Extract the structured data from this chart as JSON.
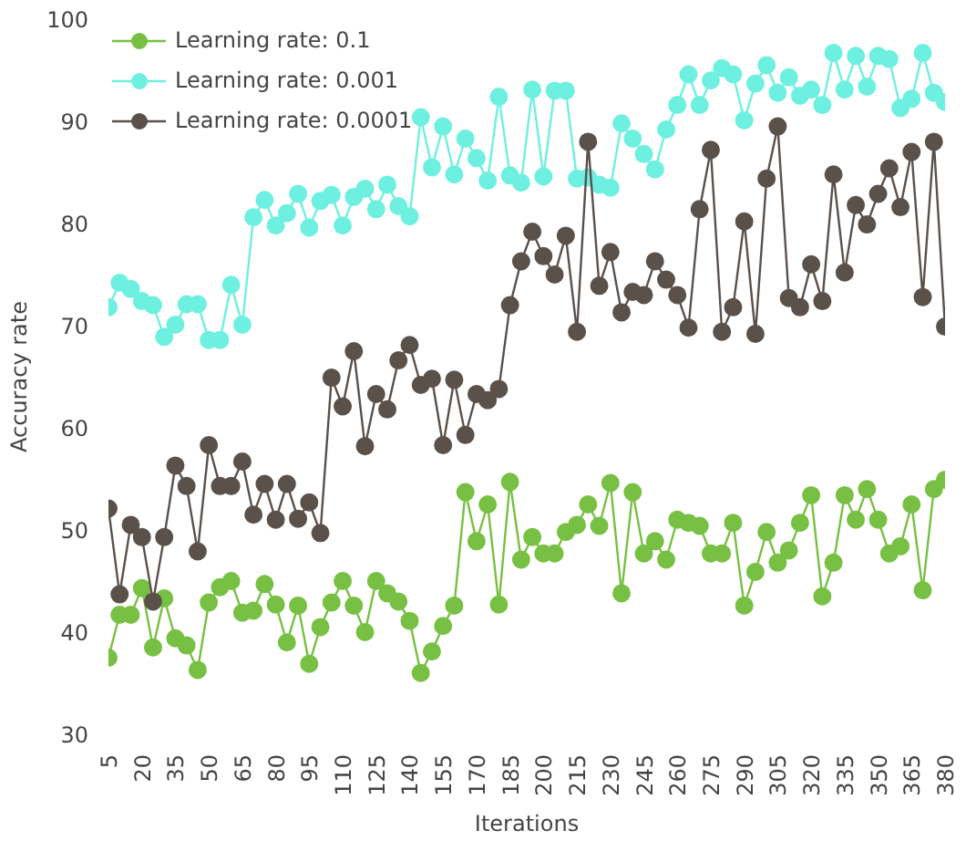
{
  "chart_data": {
    "type": "line",
    "xlabel": "Iterations",
    "ylabel": "Accuracy rate",
    "x": [
      5,
      10,
      15,
      20,
      25,
      30,
      35,
      40,
      45,
      50,
      55,
      60,
      65,
      70,
      75,
      80,
      85,
      90,
      95,
      100,
      105,
      110,
      115,
      120,
      125,
      130,
      135,
      140,
      145,
      150,
      155,
      160,
      165,
      170,
      175,
      180,
      185,
      190,
      195,
      200,
      205,
      210,
      215,
      220,
      225,
      230,
      235,
      240,
      245,
      250,
      255,
      260,
      265,
      270,
      275,
      280,
      285,
      290,
      295,
      300,
      305,
      310,
      315,
      320,
      325,
      330,
      335,
      340,
      345,
      350,
      355,
      360,
      365,
      370,
      375,
      380
    ],
    "series": [
      {
        "name": "Learning rate: 0.1",
        "color": "#77c043",
        "values": [
          37.5,
          41.7,
          41.7,
          44.3,
          38.5,
          43.3,
          39.4,
          38.7,
          36.3,
          42.9,
          44.4,
          45,
          41.9,
          42.1,
          44.7,
          42.7,
          39,
          42.6,
          36.9,
          40.5,
          42.9,
          45,
          42.6,
          40,
          45,
          43.8,
          43,
          41.1,
          36,
          38.1,
          40.6,
          42.6,
          53.7,
          48.9,
          52.5,
          42.7,
          54.7,
          47.1,
          49.3,
          47.7,
          47.7,
          49.8,
          50.5,
          52.5,
          50.4,
          54.6,
          43.8,
          53.7,
          47.7,
          48.9,
          47.1,
          51,
          50.7,
          50.4,
          47.7,
          47.7,
          50.7,
          42.6,
          45.9,
          49.8,
          46.8,
          48,
          50.7,
          53.4,
          43.5,
          46.8,
          53.4,
          51,
          54,
          51,
          47.7,
          48.4,
          52.5,
          44.1,
          54,
          54.9
        ]
      },
      {
        "name": "Learning rate: 0.001",
        "color": "#6ef0e0",
        "values": [
          71.8,
          74.2,
          73.6,
          72.4,
          72,
          68.9,
          70.1,
          72.1,
          72.1,
          68.6,
          68.6,
          74,
          70.1,
          80.6,
          82.3,
          79.8,
          81,
          82.9,
          79.6,
          82.2,
          82.8,
          79.8,
          82.6,
          83.4,
          81.4,
          83.8,
          81.7,
          80.7,
          90.4,
          85.5,
          89.5,
          84.8,
          88.3,
          86.4,
          84.2,
          92.4,
          84.7,
          84,
          93.1,
          84.6,
          93,
          93,
          84.4,
          84.5,
          83.8,
          83.5,
          89.8,
          88.3,
          86.8,
          85.3,
          89.2,
          91.6,
          94.6,
          91.6,
          94,
          95.2,
          94.6,
          90.1,
          93.7,
          95.5,
          92.8,
          94.3,
          92.5,
          93.1,
          91.6,
          96.7,
          93.1,
          96.4,
          93.4,
          96.4,
          96.1,
          91.3,
          92.2,
          96.7,
          92.8,
          91.9
        ]
      },
      {
        "name": "Learning rate: 0.0001",
        "color": "#5b514b",
        "values": [
          52.1,
          43.7,
          50.5,
          49.3,
          43,
          49.3,
          56.3,
          54.3,
          47.9,
          58.3,
          54.3,
          54.3,
          56.7,
          51.5,
          54.5,
          51,
          54.5,
          51.1,
          52.7,
          49.7,
          64.9,
          62.1,
          67.5,
          58.2,
          63.3,
          61.8,
          66.6,
          68.1,
          64.2,
          64.8,
          58.3,
          64.7,
          59.3,
          63.3,
          62.7,
          63.8,
          72,
          76.3,
          79.2,
          76.8,
          75,
          78.8,
          69.4,
          88,
          73.9,
          77.2,
          71.3,
          73.3,
          73,
          76.3,
          74.5,
          73,
          69.8,
          81.4,
          87.2,
          69.4,
          71.8,
          80.2,
          69.2,
          84.4,
          89.5,
          72.7,
          71.8,
          76,
          72.4,
          84.8,
          75.2,
          81.8,
          79.9,
          82.9,
          85.4,
          81.6,
          87,
          72.8,
          88,
          69.9
        ]
      }
    ],
    "xlim": [
      5,
      380
    ],
    "ylim": [
      30,
      100
    ],
    "xticks": [
      5,
      20,
      35,
      50,
      65,
      80,
      95,
      110,
      125,
      140,
      155,
      170,
      185,
      200,
      215,
      230,
      245,
      260,
      275,
      290,
      305,
      320,
      335,
      350,
      365,
      380
    ],
    "yticks": [
      30,
      40,
      50,
      60,
      70,
      80,
      90,
      100
    ],
    "legend": "top left",
    "marker": "circle",
    "line_style": "solid"
  }
}
